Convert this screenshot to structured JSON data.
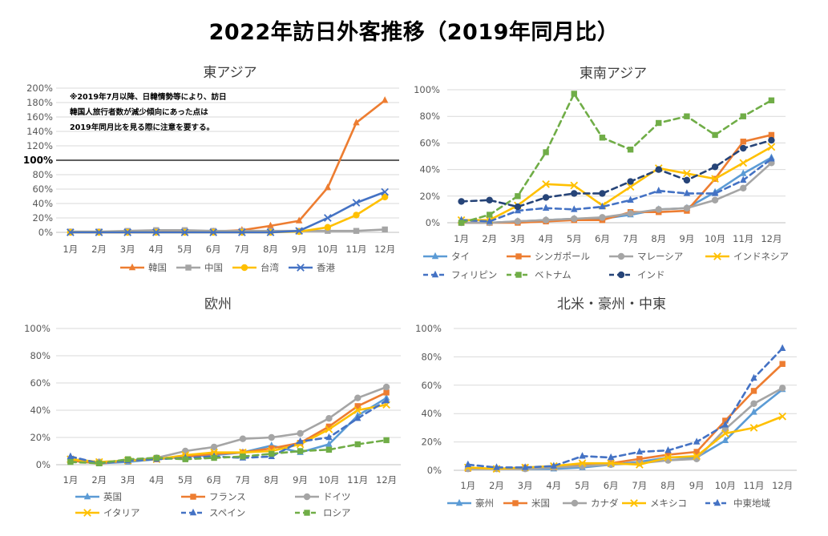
{
  "page_title": "2022年訪日外客推移（2019年同月比）",
  "chart_data": [
    {
      "type": "line",
      "title": "東アジア",
      "note": [
        "※2019年7月以降、日韓情勢等により、訪日",
        "韓国人旅行者数が減少傾向にあった点は",
        "2019年同月比を見る際に注意を要する。"
      ],
      "reference_line": 100,
      "reference_label": "100%",
      "categories": [
        "1月",
        "2月",
        "3月",
        "4月",
        "5月",
        "6月",
        "7月",
        "8月",
        "9月",
        "10月",
        "11月",
        "12月"
      ],
      "ylim": [
        0,
        200
      ],
      "ytick_step": 20,
      "grid": true,
      "legend": "bottom",
      "series": [
        {
          "name": "韓国",
          "color": "#ED7D31",
          "dash": false,
          "marker": "triangle",
          "values": [
            0,
            0,
            0,
            0,
            1,
            1,
            3,
            9,
            16,
            62,
            152,
            183
          ]
        },
        {
          "name": "中国",
          "color": "#A5A5A5",
          "dash": false,
          "marker": "square",
          "values": [
            1,
            1,
            2,
            3,
            3,
            2,
            2,
            2,
            2,
            2,
            2,
            4
          ]
        },
        {
          "name": "台湾",
          "color": "#FFC000",
          "dash": false,
          "marker": "circle",
          "values": [
            0,
            0,
            0,
            0,
            0,
            0,
            0,
            0,
            1,
            7,
            24,
            49
          ]
        },
        {
          "name": "香港",
          "color": "#4472C4",
          "dash": false,
          "marker": "x",
          "values": [
            0,
            0,
            0,
            0,
            0,
            0,
            0,
            0,
            2,
            20,
            41,
            56
          ]
        }
      ]
    },
    {
      "type": "line",
      "title": "東南アジア",
      "categories": [
        "1月",
        "2月",
        "3月",
        "4月",
        "5月",
        "6月",
        "7月",
        "8月",
        "9月",
        "10月",
        "11月",
        "12月"
      ],
      "ylim": [
        0,
        100
      ],
      "ytick_step": 20,
      "grid": true,
      "legend": "bottom",
      "series": [
        {
          "name": "タイ",
          "color": "#5B9BD5",
          "dash": false,
          "marker": "triangle",
          "values": [
            0,
            0,
            1,
            2,
            3,
            3,
            6,
            10,
            11,
            23,
            37,
            49
          ]
        },
        {
          "name": "シンガポール",
          "color": "#ED7D31",
          "dash": false,
          "marker": "square",
          "values": [
            0,
            0,
            0,
            1,
            2,
            2,
            8,
            8,
            9,
            33,
            61,
            66
          ]
        },
        {
          "name": "マレーシア",
          "color": "#A5A5A5",
          "dash": false,
          "marker": "circle",
          "values": [
            0,
            0,
            1,
            2,
            3,
            4,
            7,
            10,
            11,
            17,
            26,
            45
          ]
        },
        {
          "name": "インドネシア",
          "color": "#FFC000",
          "dash": false,
          "marker": "x",
          "values": [
            2,
            2,
            13,
            29,
            28,
            13,
            27,
            41,
            37,
            33,
            45,
            57
          ]
        },
        {
          "name": "フィリピン",
          "color": "#4472C4",
          "dash": true,
          "marker": "triangle",
          "values": [
            2,
            1,
            9,
            11,
            10,
            12,
            17,
            24,
            22,
            22,
            32,
            48
          ]
        },
        {
          "name": "ベトナム",
          "color": "#70AD47",
          "dash": true,
          "marker": "square",
          "values": [
            0,
            6,
            20,
            53,
            97,
            64,
            55,
            75,
            80,
            66,
            80,
            92
          ]
        },
        {
          "name": "インド",
          "color": "#264478",
          "dash": true,
          "marker": "circle",
          "values": [
            16,
            17,
            12,
            19,
            22,
            22,
            31,
            40,
            32,
            42,
            56,
            62
          ]
        }
      ]
    },
    {
      "type": "line",
      "title": "欧州",
      "categories": [
        "1月",
        "2月",
        "3月",
        "4月",
        "5月",
        "6月",
        "7月",
        "8月",
        "9月",
        "10月",
        "11月",
        "12月"
      ],
      "ylim": [
        0,
        100
      ],
      "ytick_step": 20,
      "grid": true,
      "legend": "bottom",
      "series": [
        {
          "name": "英国",
          "color": "#5B9BD5",
          "dash": false,
          "marker": "triangle",
          "values": [
            3,
            1,
            2,
            4,
            6,
            7,
            9,
            14,
            9,
            15,
            36,
            49
          ]
        },
        {
          "name": "フランス",
          "color": "#ED7D31",
          "dash": false,
          "marker": "square",
          "values": [
            3,
            1,
            3,
            4,
            6,
            8,
            9,
            12,
            16,
            28,
            43,
            53
          ]
        },
        {
          "name": "ドイツ",
          "color": "#A5A5A5",
          "dash": false,
          "marker": "circle",
          "values": [
            4,
            2,
            3,
            5,
            10,
            13,
            19,
            20,
            23,
            34,
            49,
            57
          ]
        },
        {
          "name": "イタリア",
          "color": "#FFC000",
          "dash": false,
          "marker": "x",
          "values": [
            4,
            2,
            3,
            4,
            7,
            9,
            9,
            10,
            15,
            26,
            40,
            44
          ]
        },
        {
          "name": "スペイン",
          "color": "#4472C4",
          "dash": true,
          "marker": "triangle",
          "values": [
            6,
            1,
            3,
            4,
            5,
            6,
            5,
            6,
            17,
            20,
            34,
            47
          ]
        },
        {
          "name": "ロシア",
          "color": "#70AD47",
          "dash": true,
          "marker": "square",
          "values": [
            2,
            1,
            4,
            5,
            4,
            5,
            6,
            8,
            10,
            11,
            15,
            18
          ]
        }
      ]
    },
    {
      "type": "line",
      "title": "北米・豪州・中東",
      "categories": [
        "1月",
        "2月",
        "3月",
        "4月",
        "5月",
        "6月",
        "7月",
        "8月",
        "9月",
        "10月",
        "11月",
        "12月"
      ],
      "ylim": [
        0,
        100
      ],
      "ytick_step": 20,
      "grid": true,
      "legend": "bottom",
      "series": [
        {
          "name": "豪州",
          "color": "#5B9BD5",
          "dash": false,
          "marker": "triangle",
          "values": [
            1,
            1,
            1,
            1,
            2,
            4,
            6,
            9,
            9,
            21,
            41,
            57
          ]
        },
        {
          "name": "米国",
          "color": "#ED7D31",
          "dash": false,
          "marker": "square",
          "values": [
            1,
            1,
            2,
            2,
            4,
            5,
            8,
            11,
            13,
            35,
            56,
            75
          ]
        },
        {
          "name": "カナダ",
          "color": "#A5A5A5",
          "dash": false,
          "marker": "circle",
          "values": [
            1,
            1,
            1,
            2,
            3,
            4,
            5,
            7,
            8,
            29,
            47,
            58
          ]
        },
        {
          "name": "メキシコ",
          "color": "#FFC000",
          "dash": false,
          "marker": "x",
          "values": [
            2,
            1,
            2,
            3,
            5,
            5,
            4,
            9,
            10,
            26,
            30,
            38
          ]
        },
        {
          "name": "中東地域",
          "color": "#4472C4",
          "dash": true,
          "marker": "triangle",
          "values": [
            4,
            2,
            2,
            3,
            10,
            9,
            13,
            14,
            20,
            32,
            65,
            86
          ]
        }
      ]
    }
  ]
}
